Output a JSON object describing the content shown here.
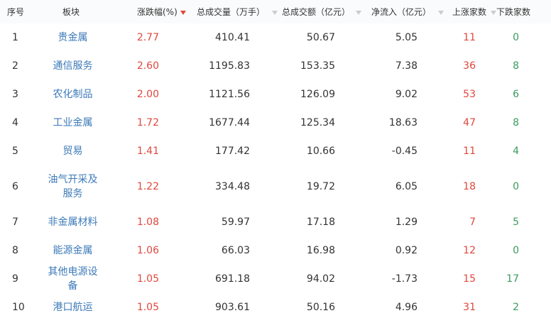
{
  "table": {
    "headers": [
      "序号",
      "板块",
      "涨跌幅(%)",
      "总成交量（万手）",
      "总成交额（亿元）",
      "净流入（亿元）",
      "上涨家数",
      "下跌家数"
    ],
    "rows": [
      [
        "1",
        "贵金属",
        "2.77",
        "410.41",
        "50.67",
        "5.05",
        "11",
        "0"
      ],
      [
        "2",
        "通信服务",
        "2.60",
        "1195.83",
        "153.35",
        "7.38",
        "36",
        "8"
      ],
      [
        "3",
        "农化制品",
        "2.00",
        "1121.56",
        "126.09",
        "9.02",
        "53",
        "6"
      ],
      [
        "4",
        "工业金属",
        "1.72",
        "1677.44",
        "125.34",
        "18.63",
        "47",
        "8"
      ],
      [
        "5",
        "贸易",
        "1.41",
        "177.42",
        "10.66",
        "-0.45",
        "11",
        "4"
      ],
      [
        "6",
        "油气开采及服务",
        "1.22",
        "334.48",
        "19.72",
        "6.05",
        "18",
        "0"
      ],
      [
        "7",
        "非金属材料",
        "1.08",
        "59.97",
        "17.18",
        "1.29",
        "7",
        "5"
      ],
      [
        "8",
        "能源金属",
        "1.06",
        "66.03",
        "16.98",
        "0.92",
        "12",
        "0"
      ],
      [
        "9",
        "其他电源设备",
        "1.05",
        "691.18",
        "94.02",
        "-1.73",
        "15",
        "17"
      ],
      [
        "10",
        "港口航运",
        "1.05",
        "903.61",
        "50.16",
        "4.96",
        "31",
        "2"
      ]
    ]
  }
}
